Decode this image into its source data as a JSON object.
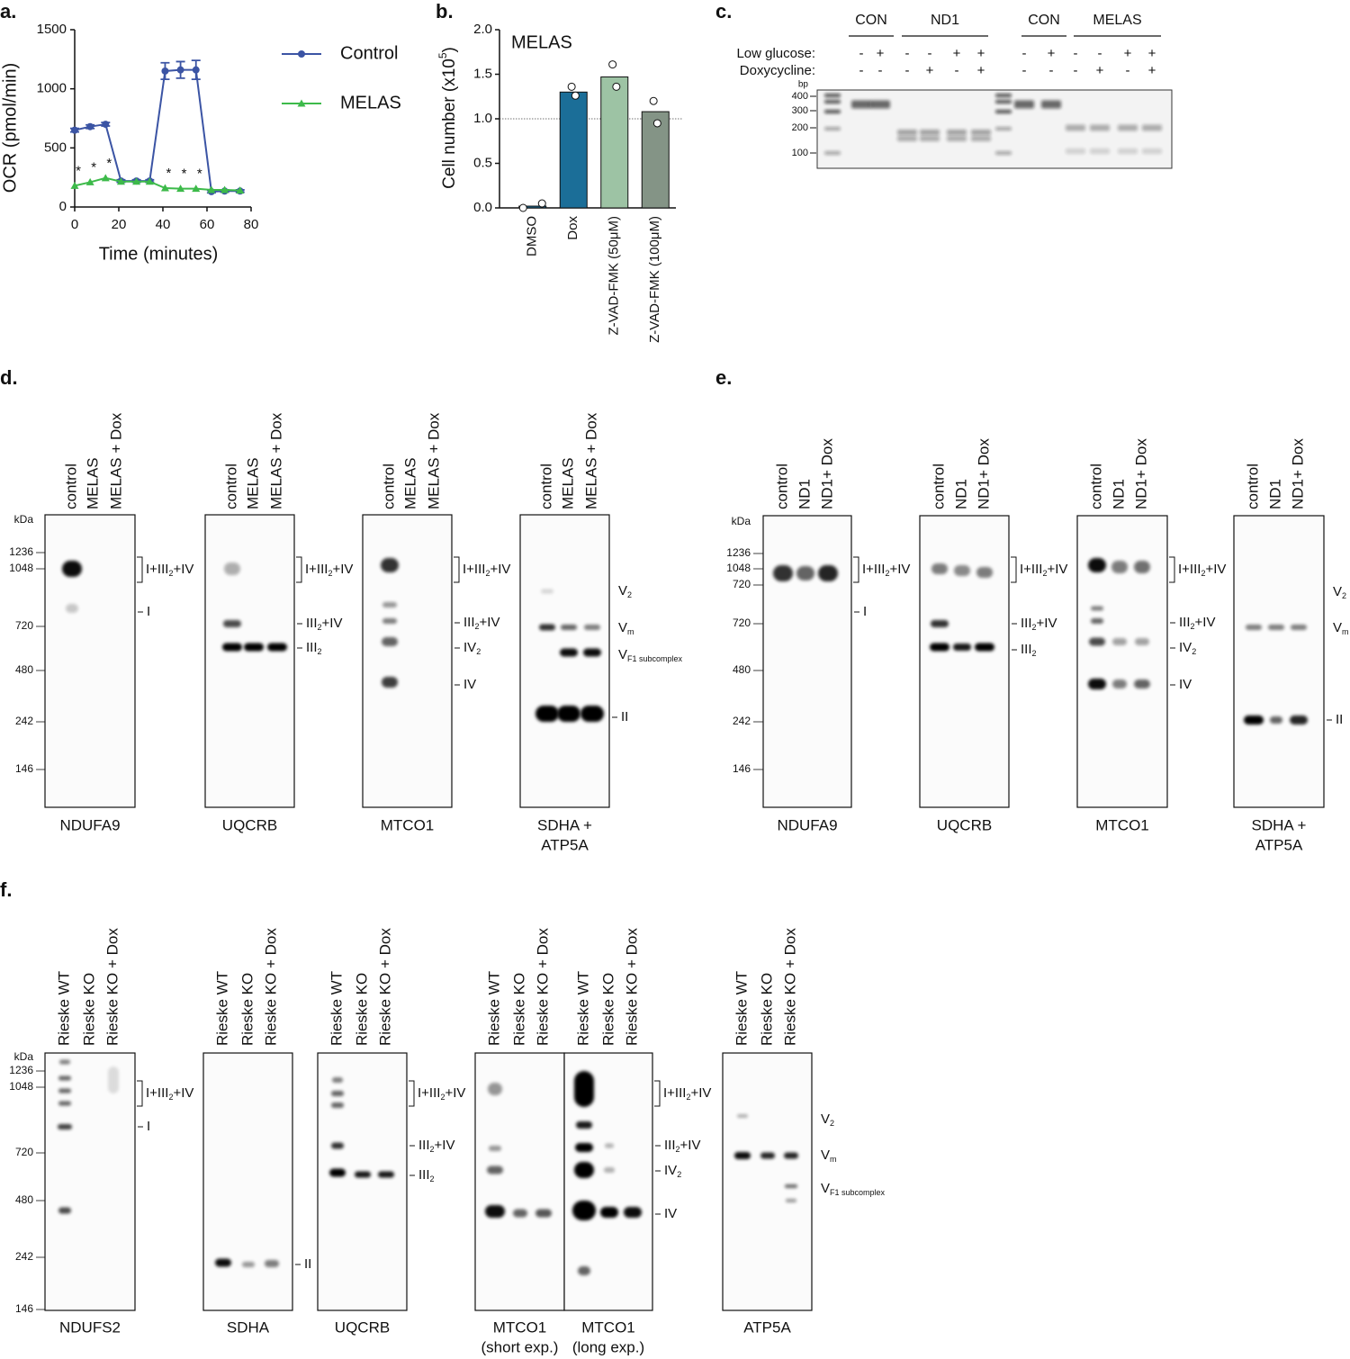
{
  "panel_labels": [
    "a.",
    "b.",
    "c.",
    "d.",
    "e.",
    "f."
  ],
  "chart_data": [
    {
      "type": "line",
      "xlabel": "Time (minutes)",
      "ylabel": "OCR (pmol/min)",
      "x": [
        0,
        7,
        14,
        21,
        28,
        34,
        41,
        48,
        55,
        62,
        68,
        75
      ],
      "series": [
        {
          "name": "Control",
          "color": "#3b54a4",
          "marker": "circle",
          "values": [
            650,
            680,
            700,
            220,
            220,
            220,
            1150,
            1160,
            1160,
            130,
            135,
            135
          ],
          "errors": [
            15,
            15,
            15,
            10,
            10,
            10,
            70,
            70,
            80,
            10,
            10,
            10
          ]
        },
        {
          "name": "MELAS",
          "color": "#3dba4a",
          "marker": "triangle",
          "values": [
            180,
            210,
            245,
            215,
            215,
            215,
            160,
            155,
            155,
            145,
            145,
            140
          ]
        }
      ],
      "annotations": [
        {
          "x": 0,
          "text": "*"
        },
        {
          "x": 7,
          "text": "*"
        },
        {
          "x": 14,
          "text": "*"
        },
        {
          "x": 41,
          "text": "*"
        },
        {
          "x": 48,
          "text": "*"
        },
        {
          "x": 55,
          "text": "*"
        }
      ],
      "xlim": [
        0,
        80
      ],
      "xticks": [
        0,
        20,
        40,
        60,
        80
      ],
      "ylim": [
        0,
        1500
      ],
      "yticks": [
        0,
        500,
        1000,
        1500
      ]
    },
    {
      "type": "bar",
      "title": "MELAS",
      "ylabel": [
        "Cell number (x10",
        "5",
        ")"
      ],
      "categories": [
        "DMSO",
        "Dox",
        "Z-VAD-FMK (50μM)",
        "Z-VAD-FMK (100μM)"
      ],
      "values": [
        0.02,
        1.3,
        1.47,
        1.08
      ],
      "colors": [
        "#1b6e98",
        "#1b6e98",
        "#9dc3a4",
        "#849486"
      ],
      "points": [
        [
          0,
          0.05
        ],
        [
          1.36,
          1.26
        ],
        [
          1.61,
          1.36
        ],
        [
          1.2,
          0.95
        ]
      ],
      "reference_line": 1,
      "ylim": [
        0,
        2
      ],
      "yticks": [
        {
          "value": 0,
          "label": "0.0"
        },
        0.5,
        {
          "value": 1,
          "label": "1.0"
        },
        1.5,
        {
          "value": 2,
          "label": "2.0"
        }
      ]
    }
  ],
  "gel": {
    "groups": [
      "CON",
      "ND1",
      "CON",
      "MELAS"
    ],
    "rows": [
      {
        "label": "Low glucose:",
        "values": [
          "-",
          "+",
          "-",
          "-",
          "+",
          "+",
          "-",
          "+",
          "-",
          "-",
          "+",
          "+"
        ]
      },
      {
        "label": "Doxycycline:",
        "values": [
          "-",
          "-",
          "-",
          "+",
          "-",
          "+",
          "-",
          "-",
          "-",
          "+",
          "-",
          "+"
        ]
      }
    ],
    "bp_unit": "bp",
    "bp_marks": [
      400,
      300,
      200,
      100
    ]
  },
  "blot_panels": [
    {
      "kda_unit": "kDa",
      "kda": [
        1236,
        1048,
        720,
        480,
        242,
        146
      ],
      "blots": [
        {
          "lanes": [
            "control",
            "MELAS",
            "MELAS + Dox"
          ],
          "name": [
            "NDUFA9"
          ],
          "labels": [
            [
              "I+III",
              "2",
              "+IV"
            ],
            [
              "I"
            ]
          ]
        },
        {
          "lanes": [
            "control",
            "MELAS",
            "MELAS + Dox"
          ],
          "name": [
            "UQCRB"
          ],
          "labels": [
            [
              "I+III",
              "2",
              "+IV"
            ],
            [
              "III",
              "2",
              "+IV"
            ],
            [
              "III",
              "2"
            ]
          ]
        },
        {
          "lanes": [
            "control",
            "MELAS",
            "MELAS + Dox"
          ],
          "name": [
            "MTCO1"
          ],
          "labels": [
            [
              "I+III",
              "2",
              "+IV"
            ],
            [
              "III",
              "2",
              "+IV"
            ],
            [
              "IV",
              "2"
            ],
            [
              "IV"
            ]
          ]
        },
        {
          "lanes": [
            "control",
            "MELAS",
            "MELAS + Dox"
          ],
          "name": [
            "SDHA +",
            "ATP5A"
          ],
          "labels": [
            [
              "V",
              "2"
            ],
            [
              "V",
              "m"
            ],
            [
              "V",
              "F1 subcomplex"
            ],
            [
              "II"
            ]
          ]
        }
      ]
    },
    {
      "kda_unit": "kDa",
      "kda": [
        1236,
        1048,
        720,
        720,
        480,
        242,
        146
      ],
      "blots": [
        {
          "lanes": [
            "control",
            "ND1",
            "ND1+ Dox"
          ],
          "name": [
            "NDUFA9"
          ],
          "labels": [
            [
              "I+III",
              "2",
              "+IV"
            ],
            [
              "I"
            ]
          ]
        },
        {
          "lanes": [
            "control",
            "ND1",
            "ND1+ Dox"
          ],
          "name": [
            "UQCRB"
          ],
          "labels": [
            [
              "I+III",
              "2",
              "+IV"
            ],
            [
              "III",
              "2",
              "+IV"
            ],
            [
              "III",
              "2"
            ]
          ]
        },
        {
          "lanes": [
            "control",
            "ND1",
            "ND1+ Dox"
          ],
          "name": [
            "MTCO1"
          ],
          "labels": [
            [
              "I+III",
              "2",
              "+IV"
            ],
            [
              "III",
              "2",
              "+IV"
            ],
            [
              "IV",
              "2"
            ],
            [
              "IV"
            ]
          ]
        },
        {
          "lanes": [
            "control",
            "ND1",
            "ND1+ Dox"
          ],
          "name": [
            "SDHA +",
            "ATP5A"
          ],
          "labels": [
            [
              "V",
              "2"
            ],
            [
              "V",
              "m"
            ],
            [
              "II"
            ]
          ]
        }
      ]
    },
    {
      "kda_unit": "kDa",
      "kda": [
        1236,
        1048,
        720,
        480,
        242,
        146
      ],
      "blots": [
        {
          "lanes": [
            "Rieske WT",
            "Rieske KO",
            "Rieske KO + Dox"
          ],
          "name": [
            "NDUFS2"
          ],
          "labels": [
            [
              "I+III",
              "2",
              "+IV"
            ],
            [
              "I"
            ]
          ]
        },
        {
          "lanes": [
            "Rieske WT",
            "Rieske KO",
            "Rieske KO + Dox"
          ],
          "name": [
            "SDHA"
          ],
          "labels": [
            [
              "II"
            ]
          ]
        },
        {
          "lanes": [
            "Rieske WT",
            "Rieske KO",
            "Rieske KO + Dox"
          ],
          "name": [
            "UQCRB"
          ],
          "labels": [
            [
              "I+III",
              "2",
              "+IV"
            ],
            [
              "III",
              "2",
              "+IV"
            ],
            [
              "III",
              "2"
            ]
          ]
        },
        {
          "lanes": [
            "Rieske WT",
            "Rieske KO",
            "Rieske KO + Dox"
          ],
          "name": [
            "MTCO1",
            "(short exp.)"
          ],
          "labels": []
        },
        {
          "lanes": [
            "Rieske WT",
            "Rieske KO",
            "Rieske KO + Dox"
          ],
          "name": [
            "MTCO1",
            "(long exp.)"
          ],
          "labels": [
            [
              "I+III",
              "2",
              "+IV"
            ],
            [
              "III",
              "2",
              "+IV"
            ],
            [
              "IV",
              "2"
            ],
            [
              "IV"
            ]
          ]
        },
        {
          "lanes": [
            "Rieske WT",
            "Rieske KO",
            "Rieske KO + Dox"
          ],
          "name": [
            "ATP5A"
          ],
          "labels": [
            [
              "V",
              "2"
            ],
            [
              "V",
              "m"
            ],
            [
              "V",
              "F1 subcomplex"
            ]
          ]
        }
      ]
    }
  ]
}
